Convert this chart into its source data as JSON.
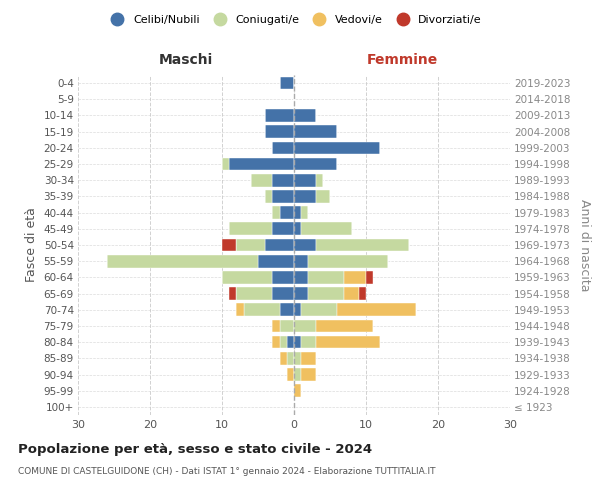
{
  "age_groups": [
    "100+",
    "95-99",
    "90-94",
    "85-89",
    "80-84",
    "75-79",
    "70-74",
    "65-69",
    "60-64",
    "55-59",
    "50-54",
    "45-49",
    "40-44",
    "35-39",
    "30-34",
    "25-29",
    "20-24",
    "15-19",
    "10-14",
    "5-9",
    "0-4"
  ],
  "birth_years": [
    "≤ 1923",
    "1924-1928",
    "1929-1933",
    "1934-1938",
    "1939-1943",
    "1944-1948",
    "1949-1953",
    "1954-1958",
    "1959-1963",
    "1964-1968",
    "1969-1973",
    "1974-1978",
    "1979-1983",
    "1984-1988",
    "1989-1993",
    "1994-1998",
    "1999-2003",
    "2004-2008",
    "2009-2013",
    "2014-2018",
    "2019-2023"
  ],
  "colors": {
    "celibi": "#4472a8",
    "coniugati": "#c5d9a0",
    "vedovi": "#f0c060",
    "divorziati": "#c0392b"
  },
  "males": {
    "celibi": [
      0,
      0,
      0,
      0,
      1,
      0,
      2,
      3,
      3,
      5,
      4,
      3,
      2,
      3,
      3,
      9,
      3,
      4,
      4,
      0,
      2
    ],
    "coniugati": [
      0,
      0,
      0,
      1,
      1,
      2,
      5,
      5,
      7,
      21,
      4,
      6,
      1,
      1,
      3,
      1,
      0,
      0,
      0,
      0,
      0
    ],
    "vedovi": [
      0,
      0,
      1,
      1,
      1,
      1,
      1,
      0,
      0,
      0,
      0,
      0,
      0,
      0,
      0,
      0,
      0,
      0,
      0,
      0,
      0
    ],
    "divorziati": [
      0,
      0,
      0,
      0,
      0,
      0,
      0,
      1,
      0,
      0,
      2,
      0,
      0,
      0,
      0,
      0,
      0,
      0,
      0,
      0,
      0
    ]
  },
  "females": {
    "celibi": [
      0,
      0,
      0,
      0,
      1,
      0,
      1,
      2,
      2,
      2,
      3,
      1,
      1,
      3,
      3,
      6,
      12,
      6,
      3,
      0,
      0
    ],
    "coniugati": [
      0,
      0,
      1,
      1,
      2,
      3,
      5,
      5,
      5,
      11,
      13,
      7,
      1,
      2,
      1,
      0,
      0,
      0,
      0,
      0,
      0
    ],
    "vedovi": [
      0,
      1,
      2,
      2,
      9,
      8,
      11,
      2,
      3,
      0,
      0,
      0,
      0,
      0,
      0,
      0,
      0,
      0,
      0,
      0,
      0
    ],
    "divorziati": [
      0,
      0,
      0,
      0,
      0,
      0,
      0,
      1,
      1,
      0,
      0,
      0,
      0,
      0,
      0,
      0,
      0,
      0,
      0,
      0,
      0
    ]
  },
  "xlim": 30,
  "title": "Popolazione per età, sesso e stato civile - 2024",
  "subtitle": "COMUNE DI CASTELGUIDONE (CH) - Dati ISTAT 1° gennaio 2024 - Elaborazione TUTTITALIA.IT",
  "xlabel_left": "Maschi",
  "xlabel_right": "Femmine",
  "ylabel_left": "Fasce di età",
  "ylabel_right": "Anni di nascita",
  "legend_labels": [
    "Celibi/Nubili",
    "Coniugati/e",
    "Vedovi/e",
    "Divorziati/e"
  ],
  "bg_color": "#ffffff",
  "grid_color": "#cccccc"
}
